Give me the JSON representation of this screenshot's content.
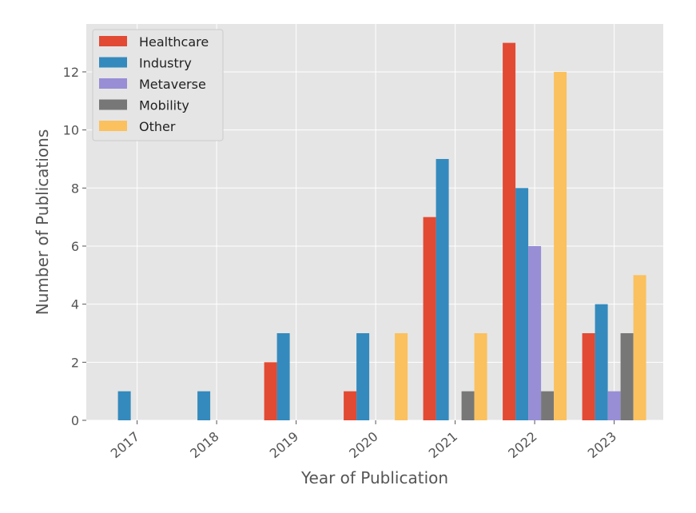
{
  "chart_data": {
    "type": "bar",
    "xlabel": "Year of Publication",
    "ylabel": "Number of Publications",
    "categories": [
      "2017",
      "2018",
      "2019",
      "2020",
      "2021",
      "2022",
      "2023"
    ],
    "series": [
      {
        "name": "Healthcare",
        "color": "#E24A33",
        "values": [
          0,
          0,
          2,
          1,
          7,
          13,
          3
        ]
      },
      {
        "name": "Industry",
        "color": "#348ABD",
        "values": [
          1,
          1,
          3,
          3,
          9,
          8,
          4
        ]
      },
      {
        "name": "Metaverse",
        "color": "#988ED5",
        "values": [
          0,
          0,
          0,
          0,
          0,
          6,
          1
        ]
      },
      {
        "name": "Mobility",
        "color": "#777777",
        "values": [
          0,
          0,
          0,
          0,
          1,
          1,
          3
        ]
      },
      {
        "name": "Other",
        "color": "#FBC15E",
        "values": [
          0,
          0,
          0,
          3,
          3,
          12,
          5
        ]
      }
    ],
    "ylim": [
      0,
      13.65
    ],
    "yticks": [
      0,
      2,
      4,
      6,
      8,
      10,
      12
    ],
    "grid": true,
    "legend_position": "top-left",
    "background": "#E5E5E5"
  }
}
